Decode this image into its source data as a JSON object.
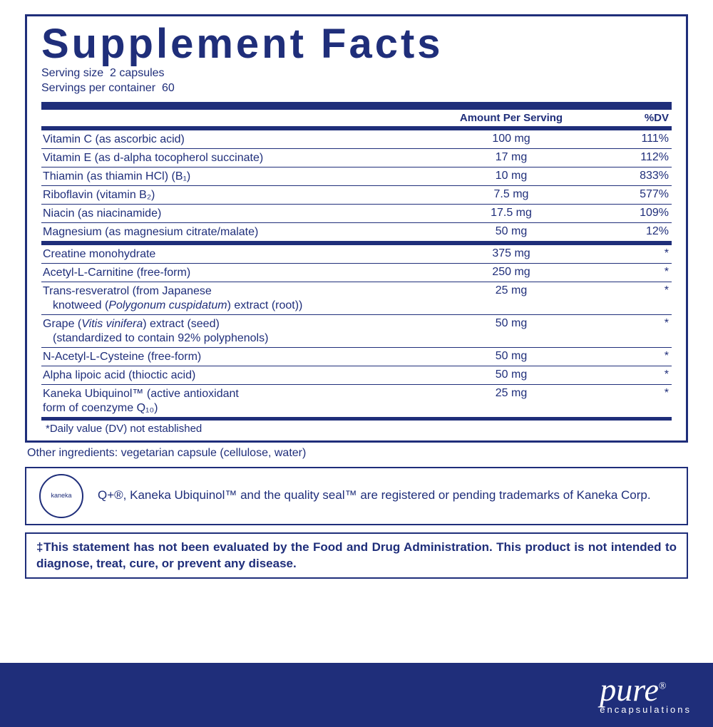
{
  "title": "Supplement Facts",
  "serving_size_label": "Serving size",
  "serving_size_value": "2 capsules",
  "servings_per_label": "Servings per container",
  "servings_per_value": "60",
  "header_amount": "Amount Per Serving",
  "header_dv": "%DV",
  "section1": [
    {
      "name": "Vitamin C (as ascorbic acid)",
      "amount": "100 mg",
      "dv": "111%"
    },
    {
      "name": "Vitamin E (as d-alpha tocopherol succinate)",
      "amount": "17 mg",
      "dv": "112%"
    },
    {
      "name": "Thiamin (as thiamin HCl) (B₁)",
      "amount": "10 mg",
      "dv": "833%"
    },
    {
      "name": "Riboflavin (vitamin B₂)",
      "amount": "7.5 mg",
      "dv": "577%"
    },
    {
      "name": "Niacin (as niacinamide)",
      "amount": "17.5 mg",
      "dv": "109%"
    },
    {
      "name": "Magnesium (as magnesium citrate/malate)",
      "amount": "50 mg",
      "dv": "12%"
    }
  ],
  "section2": [
    {
      "name": "Creatine monohydrate",
      "amount": "375 mg",
      "dv": "*"
    },
    {
      "name": "Acetyl-L-Carnitine (free-form)",
      "amount": "250 mg",
      "dv": "*"
    },
    {
      "name": "Trans-resveratrol  (from Japanese",
      "sub": "knotweed (<i>Polygonum cuspidatum</i>) extract (root))",
      "amount": "25 mg",
      "dv": "*"
    },
    {
      "name": "Grape (<i>Vitis vinifera</i>) extract (seed)",
      "sub": "(standardized to contain 92% polyphenols)",
      "amount": "50 mg",
      "dv": "*"
    },
    {
      "name": "N-Acetyl-L-Cysteine (free-form)",
      "amount": "50 mg",
      "dv": "*"
    },
    {
      "name": "Alpha lipoic acid (thioctic acid)",
      "amount": "50 mg",
      "dv": "*"
    },
    {
      "name": "Kaneka Ubiquinol™ (active antioxidant",
      "sub2": "form of coenzyme Q₁₀)",
      "amount": "25 mg",
      "dv": "*"
    }
  ],
  "dv_note": "*Daily value (DV) not established",
  "other_ingredients": "Other ingredients: vegetarian capsule (cellulose, water)",
  "seal_text": "kaneka",
  "tm_text": "Q+®, Kaneka Ubiquinol™ and the quality seal™ are registered or pending trademarks of Kaneka Corp.",
  "fda_text": "‡This statement has not been evaluated by the Food and Drug Administration. This product is not intended to diagnose, treat, cure, or prevent any disease.",
  "brand_main": "pure",
  "brand_sub": "encapsulations",
  "colors": {
    "ink": "#1f2e7a",
    "bg": "#ffffff"
  }
}
